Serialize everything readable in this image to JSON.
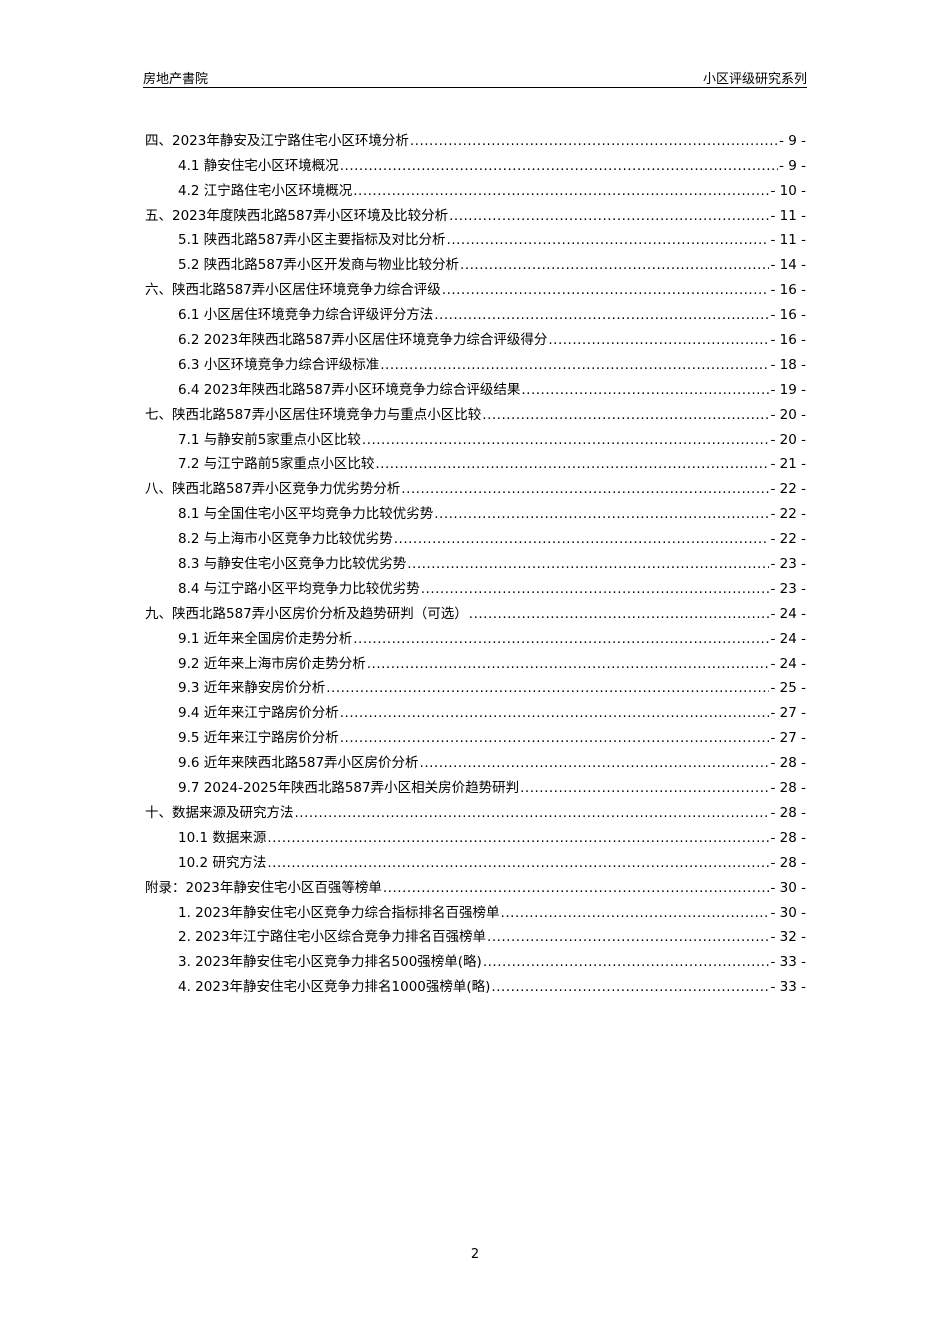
{
  "header": {
    "left": "房地产書院",
    "right": "小区评级研究系列"
  },
  "toc": [
    {
      "level": 1,
      "title": "四、2023年静安及江宁路住宅小区环境分析",
      "page": "- 9 -"
    },
    {
      "level": 2,
      "title": "4.1 静安住宅小区环境概况",
      "page": "- 9 -"
    },
    {
      "level": 2,
      "title": "4.2 江宁路住宅小区环境概况",
      "page": "- 10 -"
    },
    {
      "level": 1,
      "title": "五、2023年度陕西北路587弄小区环境及比较分析",
      "page": "- 11 -"
    },
    {
      "level": 2,
      "title": "5.1 陕西北路587弄小区主要指标及对比分析",
      "page": "- 11 -"
    },
    {
      "level": 2,
      "title": "5.2 陕西北路587弄小区开发商与物业比较分析",
      "page": "- 14 -"
    },
    {
      "level": 1,
      "title": "六、陕西北路587弄小区居住环境竞争力综合评级",
      "page": "- 16 -"
    },
    {
      "level": 2,
      "title": "6.1 小区居住环境竞争力综合评级评分方法",
      "page": "- 16 -"
    },
    {
      "level": 2,
      "title": "6.2 2023年陕西北路587弄小区居住环境竞争力综合评级得分",
      "page": "- 16 -"
    },
    {
      "level": 2,
      "title": "6.3 小区环境竞争力综合评级标准",
      "page": "- 18 -"
    },
    {
      "level": 2,
      "title": "6.4 2023年陕西北路587弄小区环境竞争力综合评级结果",
      "page": "- 19 -"
    },
    {
      "level": 1,
      "title": "七、陕西北路587弄小区居住环境竞争力与重点小区比较",
      "page": "- 20 -"
    },
    {
      "level": 2,
      "title": "7.1 与静安前5家重点小区比较",
      "page": "- 20 -"
    },
    {
      "level": 2,
      "title": "7.2 与江宁路前5家重点小区比较",
      "page": "- 21 -"
    },
    {
      "level": 1,
      "title": "八、陕西北路587弄小区竞争力优劣势分析",
      "page": "- 22 -"
    },
    {
      "level": 2,
      "title": "8.1 与全国住宅小区平均竞争力比较优劣势",
      "page": "- 22 -"
    },
    {
      "level": 2,
      "title": "8.2 与上海市小区竞争力比较优劣势",
      "page": "- 22 -"
    },
    {
      "level": 2,
      "title": "8.3 与静安住宅小区竞争力比较优劣势",
      "page": "- 23 -"
    },
    {
      "level": 2,
      "title": "8.4 与江宁路小区平均竞争力比较优劣势",
      "page": "- 23 -"
    },
    {
      "level": 1,
      "title": "九、陕西北路587弄小区房价分析及趋势研判（可选）",
      "page": "- 24 -"
    },
    {
      "level": 2,
      "title": "9.1 近年来全国房价走势分析",
      "page": "- 24 -"
    },
    {
      "level": 2,
      "title": "9.2 近年来上海市房价走势分析",
      "page": "- 24 -"
    },
    {
      "level": 2,
      "title": "9.3 近年来静安房价分析",
      "page": "- 25 -"
    },
    {
      "level": 2,
      "title": "9.4 近年来江宁路房价分析",
      "page": "- 27 -"
    },
    {
      "level": 2,
      "title": "9.5 近年来江宁路房价分析",
      "page": "- 27 -"
    },
    {
      "level": 2,
      "title": "9.6 近年来陕西北路587弄小区房价分析",
      "page": "- 28 -"
    },
    {
      "level": 2,
      "title": "9.7 2024-2025年陕西北路587弄小区相关房价趋势研判",
      "page": "- 28 -"
    },
    {
      "level": 1,
      "title": "十、数据来源及研究方法",
      "page": "- 28 -"
    },
    {
      "level": 2,
      "title": "10.1 数据来源",
      "page": "- 28 -"
    },
    {
      "level": 2,
      "title": "10.2 研究方法",
      "page": "- 28 -"
    },
    {
      "level": 1,
      "title": "附录：2023年静安住宅小区百强等榜单",
      "page": "- 30 -"
    },
    {
      "level": 2,
      "title": "1.  2023年静安住宅小区竞争力综合指标排名百强榜单",
      "page": "- 30 -"
    },
    {
      "level": 2,
      "title": "2.  2023年江宁路住宅小区综合竞争力排名百强榜单",
      "page": "- 32 -"
    },
    {
      "level": 2,
      "title": "3.  2023年静安住宅小区竞争力排名500强榜单(略)",
      "page": "- 33 -"
    },
    {
      "level": 2,
      "title": "4.  2023年静安住宅小区竞争力排名1000强榜单(略)",
      "page": "- 33 -"
    }
  ],
  "page_number": "2"
}
